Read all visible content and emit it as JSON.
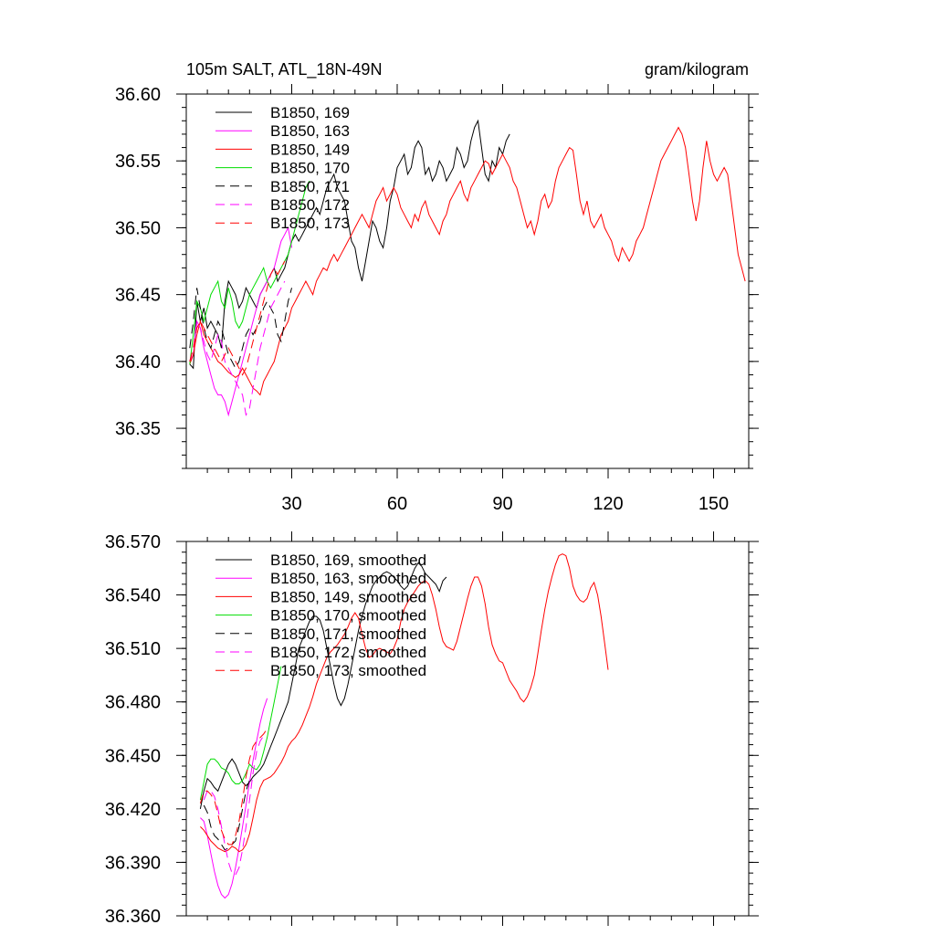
{
  "colors": {
    "black": "#000000",
    "magenta": "#ff00ff",
    "red": "#ff0000",
    "green": "#00dd00"
  },
  "chart_data": [
    {
      "type": "line",
      "title": "105m SALT, ATL_18N-49N",
      "units": "gram/kilogram",
      "xlim": [
        0,
        160
      ],
      "ylim": [
        36.32,
        36.6
      ],
      "xticks": [
        30,
        60,
        90,
        120,
        150
      ],
      "xtick_labels": [
        "30",
        "60",
        "90",
        "120",
        "150"
      ],
      "yticks": [
        36.35,
        36.4,
        36.45,
        36.5,
        36.55,
        36.6
      ],
      "ytick_labels": [
        "36.35",
        "36.40",
        "36.45",
        "36.50",
        "36.55",
        "36.60"
      ],
      "legend_position": "top-left",
      "series": [
        {
          "name": "B1850, 169",
          "color": "#000000",
          "dash": false,
          "x_start": 1,
          "values": [
            36.398,
            36.395,
            36.445,
            36.43,
            36.44,
            36.425,
            36.43,
            36.425,
            36.42,
            36.41,
            36.445,
            36.46,
            36.455,
            36.45,
            36.44,
            36.445,
            36.455,
            36.45,
            36.445,
            36.44,
            36.45,
            36.455,
            36.46,
            36.465,
            36.47,
            36.46,
            36.465,
            36.47,
            36.48,
            36.49,
            36.495,
            36.49,
            36.495,
            36.5,
            36.505,
            36.51,
            36.515,
            36.51,
            36.52,
            36.53,
            36.535,
            36.54,
            36.53,
            36.525,
            36.52,
            36.505,
            36.49,
            36.485,
            36.47,
            36.46,
            36.475,
            36.49,
            36.505,
            36.5,
            36.49,
            36.485,
            36.5,
            36.52,
            36.53,
            36.545,
            36.55,
            36.555,
            36.54,
            36.545,
            36.56,
            36.565,
            36.56,
            36.54,
            36.545,
            36.535,
            36.54,
            36.55,
            36.545,
            36.535,
            36.54,
            36.545,
            36.56,
            36.555,
            36.545,
            36.55,
            36.565,
            36.575,
            36.58,
            36.56,
            36.54,
            36.535,
            36.55,
            36.545,
            36.56,
            36.555,
            36.565,
            36.57
          ]
        },
        {
          "name": "B1850, 163",
          "color": "#ff00ff",
          "dash": false,
          "x_start": 1,
          "values": [
            36.4,
            36.405,
            36.43,
            36.425,
            36.41,
            36.4,
            36.39,
            36.38,
            36.375,
            36.375,
            36.37,
            36.36,
            36.37,
            36.38,
            36.39,
            36.4,
            36.41,
            36.42,
            36.43,
            36.44,
            36.45,
            36.455,
            36.46,
            36.465,
            36.47,
            36.48,
            36.49,
            36.495,
            36.5,
            36.485
          ]
        },
        {
          "name": "B1850, 149",
          "color": "#ff0000",
          "dash": false,
          "x_start": 1,
          "values": [
            36.398,
            36.405,
            36.42,
            36.43,
            36.42,
            36.415,
            36.41,
            36.405,
            36.4,
            36.398,
            36.395,
            36.392,
            36.39,
            36.388,
            36.39,
            36.395,
            36.39,
            36.385,
            36.38,
            36.378,
            36.375,
            36.385,
            36.39,
            36.395,
            36.4,
            36.41,
            36.42,
            36.425,
            36.43,
            36.44,
            36.445,
            36.45,
            36.455,
            36.46,
            36.455,
            36.45,
            36.46,
            36.465,
            36.47,
            36.468,
            36.475,
            36.48,
            36.475,
            36.48,
            36.485,
            36.49,
            36.495,
            36.5,
            36.505,
            36.51,
            36.505,
            36.5,
            36.51,
            36.52,
            36.525,
            36.53,
            36.52,
            36.525,
            36.53,
            36.525,
            36.515,
            36.51,
            36.505,
            36.5,
            36.51,
            36.505,
            36.515,
            36.52,
            36.51,
            36.505,
            36.5,
            36.495,
            36.505,
            36.51,
            36.52,
            36.525,
            36.53,
            36.535,
            36.525,
            36.52,
            36.53,
            36.535,
            36.54,
            36.545,
            36.55,
            36.548,
            36.54,
            36.545,
            36.55,
            36.555,
            36.55,
            36.545,
            36.535,
            36.53,
            36.52,
            36.51,
            36.5,
            36.505,
            36.495,
            36.505,
            36.52,
            36.525,
            36.515,
            36.52,
            36.535,
            36.545,
            36.55,
            36.555,
            36.56,
            36.558,
            36.54,
            36.52,
            36.51,
            36.52,
            36.505,
            36.5,
            36.505,
            36.51,
            36.5,
            36.495,
            36.49,
            36.48,
            36.475,
            36.485,
            36.48,
            36.475,
            36.48,
            36.49,
            36.495,
            36.5,
            36.51,
            36.52,
            36.53,
            36.54,
            36.55,
            36.555,
            36.56,
            36.565,
            36.57,
            36.575,
            36.57,
            36.56,
            36.54,
            36.52,
            36.505,
            36.52,
            36.545,
            36.565,
            36.55,
            36.54,
            36.535,
            36.54,
            36.545,
            36.54,
            36.52,
            36.5,
            36.48,
            36.47,
            36.46
          ]
        },
        {
          "name": "B1850, 170",
          "color": "#00dd00",
          "dash": false,
          "x_start": 1,
          "values": [
            36.398,
            36.42,
            36.445,
            36.44,
            36.43,
            36.44,
            36.45,
            36.455,
            36.46,
            36.445,
            36.44,
            36.455,
            36.445,
            36.43,
            36.425,
            36.43,
            36.44,
            36.45,
            36.455,
            36.46,
            36.465,
            36.47,
            36.46,
            36.455,
            36.46,
            36.465,
            36.47,
            36.475,
            36.48,
            36.49,
            36.5,
            36.51,
            36.52,
            36.53,
            36.535
          ]
        },
        {
          "name": "B1850, 171",
          "color": "#000000",
          "dash": true,
          "x_start": 1,
          "values": [
            36.41,
            36.43,
            36.455,
            36.44,
            36.425,
            36.415,
            36.41,
            36.42,
            36.43,
            36.425,
            36.415,
            36.405,
            36.4,
            36.395,
            36.4,
            36.41,
            36.42,
            36.425,
            36.42,
            36.425,
            36.43,
            36.44,
            36.445,
            36.44,
            36.435,
            36.42,
            36.415,
            36.43,
            36.445,
            36.455
          ]
        },
        {
          "name": "B1850, 172",
          "color": "#ff00ff",
          "dash": true,
          "x_start": 1,
          "values": [
            36.4,
            36.41,
            36.43,
            36.425,
            36.415,
            36.405,
            36.4,
            36.41,
            36.42,
            36.415,
            36.4,
            36.395,
            36.39,
            36.385,
            36.38,
            36.375,
            36.36,
            36.365,
            36.38,
            36.395,
            36.41,
            36.42,
            36.43,
            36.44,
            36.445,
            36.45,
            36.455,
            36.46
          ]
        },
        {
          "name": "B1850, 173",
          "color": "#ff0000",
          "dash": true,
          "x_start": 1,
          "values": [
            36.4,
            36.41,
            36.425,
            36.43,
            36.425,
            36.42,
            36.415,
            36.41,
            36.405,
            36.4,
            36.405,
            36.41,
            36.405,
            36.4,
            36.395,
            36.39,
            36.395,
            36.405,
            36.415,
            36.425,
            36.435,
            36.445,
            36.455,
            36.465,
            36.47,
            36.465,
            36.47,
            36.475
          ]
        }
      ]
    },
    {
      "type": "line",
      "xlim": [
        0,
        160
      ],
      "ylim": [
        36.36,
        36.57
      ],
      "xticks": [
        30,
        60,
        90,
        120,
        150
      ],
      "yticks": [
        36.36,
        36.39,
        36.42,
        36.45,
        36.48,
        36.51,
        36.54,
        36.57
      ],
      "ytick_labels": [
        "36.360",
        "36.390",
        "36.420",
        "36.450",
        "36.480",
        "36.510",
        "36.540",
        "36.570"
      ],
      "legend_position": "top-left",
      "series": [
        {
          "name": "B1850, 169, smoothed",
          "color": "#000000",
          "dash": false,
          "x_start": 4,
          "values": [
            36.42,
            36.43,
            36.437,
            36.435,
            36.432,
            36.43,
            36.435,
            36.44,
            36.445,
            36.448,
            36.445,
            36.44,
            36.435,
            36.433,
            36.435,
            36.438,
            36.44,
            36.442,
            36.445,
            36.45,
            36.455,
            36.46,
            36.465,
            36.47,
            36.475,
            36.48,
            36.49,
            36.5,
            36.51,
            36.515,
            36.52,
            36.525,
            36.528,
            36.528,
            36.526,
            36.52,
            36.51,
            36.5,
            36.49,
            36.482,
            36.478,
            36.482,
            36.49,
            36.5,
            36.51,
            36.52,
            36.528,
            36.535,
            36.54,
            36.545,
            36.548,
            36.55,
            36.552,
            36.553,
            36.552,
            36.55,
            36.548,
            36.545,
            36.543,
            36.545,
            36.55,
            36.555,
            36.558,
            36.556,
            36.552,
            36.55,
            36.548,
            36.546,
            36.542,
            36.548,
            36.55
          ]
        },
        {
          "name": "B1850, 163, smoothed",
          "color": "#ff00ff",
          "dash": false,
          "x_start": 4,
          "values": [
            36.415,
            36.413,
            36.405,
            36.395,
            36.385,
            36.377,
            36.372,
            36.37,
            36.372,
            36.378,
            36.387,
            36.398,
            36.41,
            36.422,
            36.435,
            36.447,
            36.458,
            36.468,
            36.476,
            36.482
          ]
        },
        {
          "name": "B1850, 149, smoothed",
          "color": "#ff0000",
          "dash": false,
          "x_start": 4,
          "values": [
            36.41,
            36.408,
            36.405,
            36.402,
            36.4,
            36.398,
            36.397,
            36.396,
            36.397,
            36.399,
            36.398,
            36.396,
            36.397,
            36.4,
            36.406,
            36.415,
            36.425,
            36.432,
            36.436,
            36.437,
            36.438,
            36.44,
            36.443,
            36.446,
            36.45,
            36.455,
            36.458,
            36.46,
            36.463,
            36.467,
            36.472,
            36.477,
            36.483,
            36.49,
            36.495,
            36.5,
            36.505,
            36.508,
            36.51,
            36.512,
            36.515,
            36.518,
            36.522,
            36.527,
            36.53,
            36.527,
            36.518,
            36.51,
            36.505,
            36.506,
            36.509,
            36.51,
            36.509,
            36.508,
            36.507,
            36.51,
            36.515,
            36.525,
            36.532,
            36.536,
            36.539,
            36.542,
            36.545,
            36.547,
            36.548,
            36.546,
            36.54,
            36.532,
            36.522,
            36.514,
            36.511,
            36.51,
            36.509,
            36.514,
            36.522,
            36.53,
            36.538,
            36.545,
            36.55,
            36.55,
            36.545,
            36.535,
            36.522,
            36.512,
            36.507,
            36.503,
            36.502,
            36.497,
            36.492,
            36.489,
            36.486,
            36.482,
            36.48,
            36.483,
            36.488,
            36.495,
            36.507,
            36.52,
            36.532,
            36.542,
            36.55,
            36.557,
            36.562,
            36.563,
            36.562,
            36.555,
            36.545,
            36.54,
            36.537,
            36.536,
            36.538,
            36.544,
            36.547,
            36.54,
            36.528,
            36.513,
            36.498
          ]
        },
        {
          "name": "B1850, 170, smoothed",
          "color": "#00dd00",
          "dash": false,
          "x_start": 4,
          "values": [
            36.425,
            36.435,
            36.445,
            36.448,
            36.448,
            36.446,
            36.443,
            36.442,
            36.44,
            36.436,
            36.434,
            36.434,
            36.436,
            36.44,
            36.445,
            36.443,
            36.442,
            36.445,
            36.452,
            36.46,
            36.47,
            36.48,
            36.49,
            36.5
          ]
        },
        {
          "name": "B1850, 171, smoothed",
          "color": "#000000",
          "dash": true,
          "x_start": 5,
          "values": [
            36.422,
            36.418,
            36.41,
            36.405,
            36.403,
            36.4,
            36.397,
            36.398,
            36.4,
            36.402,
            36.41,
            36.42,
            36.43,
            36.436,
            36.438,
            36.44
          ]
        },
        {
          "name": "B1850, 172, smoothed",
          "color": "#ff00ff",
          "dash": true,
          "x_start": 5,
          "values": [
            36.425,
            36.43,
            36.43,
            36.427,
            36.42,
            36.41,
            36.4,
            36.39,
            36.384,
            36.383,
            36.387,
            36.397,
            36.41,
            36.425,
            36.44,
            36.452,
            36.458,
            36.461
          ]
        },
        {
          "name": "B1850, 173, smoothed",
          "color": "#ff0000",
          "dash": true,
          "x_start": 4,
          "values": [
            36.423,
            36.43,
            36.43,
            36.428,
            36.425,
            36.417,
            36.408,
            36.403,
            36.4,
            36.4,
            36.405,
            36.413,
            36.425,
            36.438,
            36.448,
            36.455,
            36.458,
            36.46,
            36.462,
            36.465
          ]
        }
      ]
    }
  ]
}
